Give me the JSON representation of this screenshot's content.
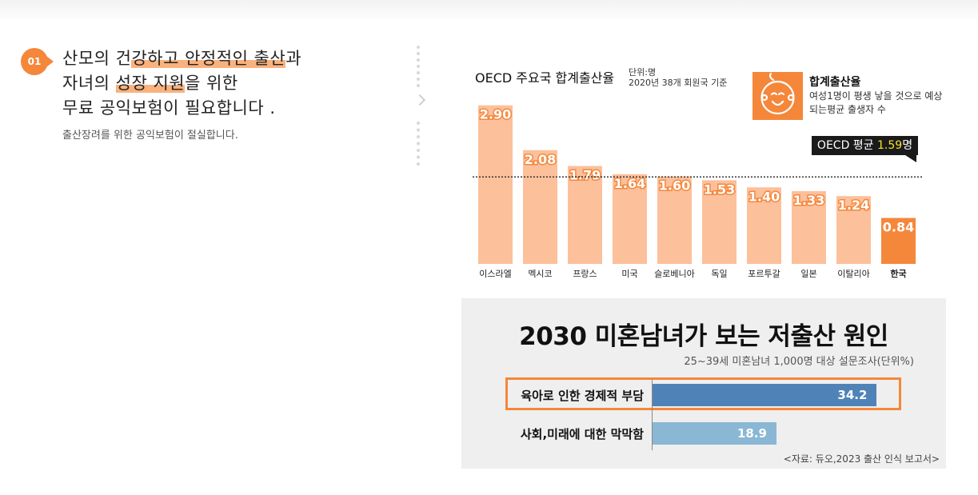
{
  "intro": {
    "badge": "01",
    "line1_a": "산모의 건",
    "line1_b": "강하고 안정적인 출산",
    "line1_c": "과",
    "line2_a": "자녀의 ",
    "line2_b": "성장 지원",
    "line2_c": "을 위한",
    "line3": "무료 공익보험이 필요합니다 .",
    "sub": "출산장려를 위한 공익보험이 절실합니다."
  },
  "chart1": {
    "title": "OECD 주요국 합계출산율",
    "unit": "단위:명",
    "basis": "2020년 38개 회원국 기준",
    "legend_title": "합계출산율",
    "legend_desc": "여성1명이 평생 낳을 것으로 예상되는평균 출생자 수",
    "avg_label": "OECD 평균 ",
    "avg_value": "1.59",
    "avg_unit": "명",
    "colors": {
      "bar": "#fcc09b",
      "highlight": "#f5873b",
      "avg_line": "#333333"
    }
  },
  "chart2": {
    "title": "2030 미혼남녀가 보는 저출산 원인",
    "subtitle": "25~39세 미혼남녀 1,000명 대상 설문조사(단위%)",
    "source": "<자료: 듀오,2023 출산 인식 보고서>",
    "colors": {
      "bar1": "#4f83b8",
      "bar2": "#8ab7d3",
      "highlight_border": "#f5873b"
    }
  },
  "chart_data": [
    {
      "type": "bar",
      "title": "OECD 주요국 합계출산율",
      "categories": [
        "이스라엘",
        "멕시코",
        "프랑스",
        "미국",
        "슬로베니아",
        "독일",
        "포르투갈",
        "일본",
        "이탈리아",
        "한국"
      ],
      "values": [
        2.9,
        2.08,
        1.79,
        1.64,
        1.6,
        1.53,
        1.4,
        1.33,
        1.24,
        0.84
      ],
      "value_labels": [
        "2.90",
        "2.08",
        "1.79",
        "1.64",
        "1.60",
        "1.53",
        "1.40",
        "1.33",
        "1.24",
        "0.84"
      ],
      "reference_line": {
        "label": "OECD 평균",
        "value": 1.59
      },
      "highlight": "한국",
      "ylim": [
        0,
        3.1
      ],
      "grid": false
    },
    {
      "type": "bar",
      "orientation": "horizontal",
      "title": "2030 미혼남녀가 보는 저출산 원인",
      "categories": [
        "육아로 인한 경제적 부담",
        "사회,미래에 대한 막막함"
      ],
      "values": [
        34.2,
        18.9
      ],
      "value_labels": [
        "34.2",
        "18.9"
      ],
      "highlight": "육아로 인한 경제적 부담",
      "xlim": [
        0,
        40
      ]
    }
  ]
}
